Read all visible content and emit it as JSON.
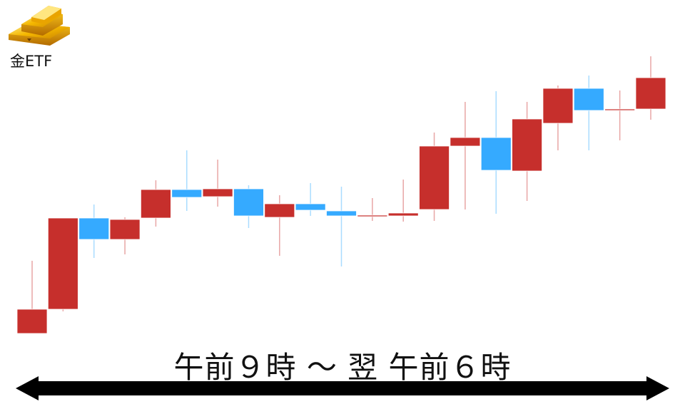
{
  "logo": {
    "label": "金ETF",
    "icon": "gold-bars-icon"
  },
  "colors": {
    "up": "#c62f2c",
    "down": "#35aaff",
    "up_wick": "#e8a6a5",
    "down_wick": "#a9dcff"
  },
  "time_range_label": "午前９時 ～ 翌 午前６時",
  "chart_data": {
    "type": "candlestick",
    "title": "",
    "xlabel": "午前９時 ～ 翌 午前６時",
    "ylabel": "",
    "grid": false,
    "legend": "none",
    "ylim": [
      0,
      460
    ],
    "value_note_scale": "relative",
    "candles": [
      {
        "open": 32,
        "high": 134,
        "low": 32,
        "close": 66
      },
      {
        "open": 66,
        "high": 194,
        "low": 63,
        "close": 194
      },
      {
        "open": 194,
        "high": 213,
        "low": 138,
        "close": 164
      },
      {
        "open": 164,
        "high": 195,
        "low": 143,
        "close": 192
      },
      {
        "open": 194,
        "high": 247,
        "low": 182,
        "close": 234
      },
      {
        "open": 234,
        "high": 289,
        "low": 204,
        "close": 223
      },
      {
        "open": 224,
        "high": 276,
        "low": 210,
        "close": 235
      },
      {
        "open": 235,
        "high": 240,
        "low": 180,
        "close": 197
      },
      {
        "open": 195,
        "high": 226,
        "low": 141,
        "close": 214
      },
      {
        "open": 214,
        "high": 243,
        "low": 197,
        "close": 205
      },
      {
        "open": 204,
        "high": 238,
        "low": 126,
        "close": 197
      },
      {
        "open": 197,
        "high": 222,
        "low": 190,
        "close": 198
      },
      {
        "open": 197,
        "high": 248,
        "low": 189,
        "close": 201
      },
      {
        "open": 206,
        "high": 314,
        "low": 190,
        "close": 295
      },
      {
        "open": 295,
        "high": 357,
        "low": 206,
        "close": 307
      },
      {
        "open": 307,
        "high": 372,
        "low": 200,
        "close": 261
      },
      {
        "open": 260,
        "high": 357,
        "low": 218,
        "close": 333
      },
      {
        "open": 327,
        "high": 380,
        "low": 289,
        "close": 376
      },
      {
        "open": 376,
        "high": 394,
        "low": 289,
        "close": 345
      },
      {
        "open": 345,
        "high": 373,
        "low": 303,
        "close": 347
      },
      {
        "open": 347,
        "high": 421,
        "low": 332,
        "close": 391
      }
    ]
  }
}
